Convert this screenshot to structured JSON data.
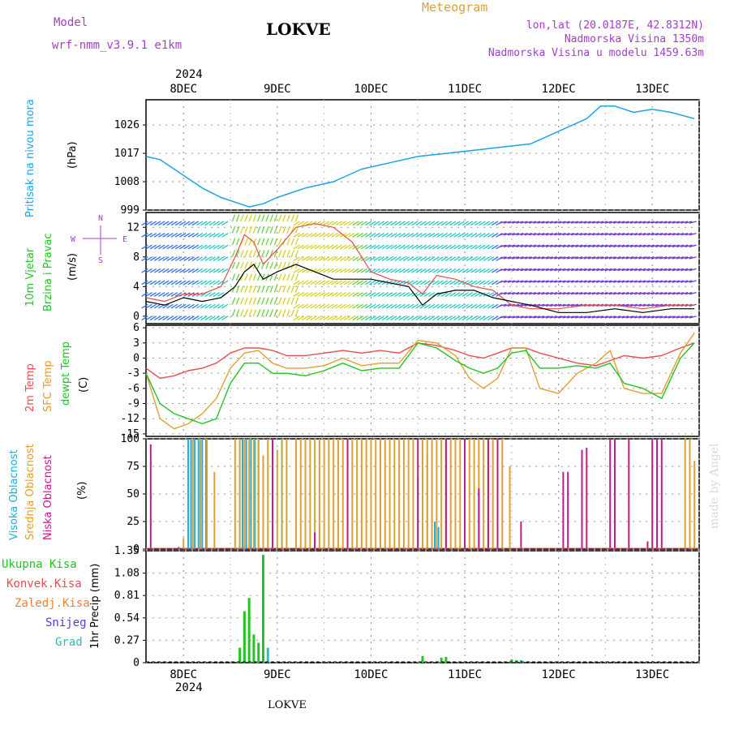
{
  "header": {
    "model_label": "Model",
    "model_name": "wrf-nmm_v3.9.1 e1km",
    "title": "LOKVE",
    "meteogram": "Meteogram",
    "lonlat": "lon,lat (20.0187E, 42.8312N)",
    "altitude": "Nadmorska Visina 1350m",
    "model_altitude": "Nadmorska Visina u modelu 1459.63m",
    "year_top": "2024",
    "year_bottom": "2024",
    "footer": "LOKVE",
    "watermark": "made by Angel"
  },
  "colors": {
    "pressure": "#1aa3e8",
    "temp2m": "#e84c4c",
    "sfc": "#e0a030",
    "dewpt": "#22c422",
    "high_cloud": "#1ab0e0",
    "mid_cloud": "#e0a030",
    "low_cloud": "#c21a8a",
    "total_precip": "#22c422",
    "conv_precip": "#e84c4c",
    "freezing_precip": "#f08030",
    "snow": "#4444dd",
    "hail": "#22c4b4"
  },
  "chart_data": [
    {
      "type": "line",
      "panel": "pressure",
      "ylabel_1": "Pritisak na nivou mora",
      "ylabel_2": "(hPa)",
      "yticks": [
        999,
        1008,
        1017,
        1026
      ],
      "ylim": [
        999,
        1034
      ],
      "x_days": [
        "8DEC",
        "9DEC",
        "10DEC",
        "11DEC",
        "12DEC",
        "13DEC"
      ],
      "x": [
        7.6,
        7.75,
        7.95,
        8.2,
        8.4,
        8.6,
        8.7,
        8.85,
        9.0,
        9.3,
        9.6,
        9.9,
        10.2,
        10.5,
        10.8,
        11.1,
        11.4,
        11.7,
        12.0,
        12.3,
        12.45,
        12.6,
        12.8,
        13.0,
        13.2,
        13.45
      ],
      "values": [
        1016,
        1015,
        1011,
        1006,
        1003,
        1001,
        1000,
        1001,
        1003,
        1006,
        1008,
        1012,
        1014,
        1016,
        1017,
        1018,
        1019,
        1020,
        1024,
        1028,
        1032,
        1032,
        1030,
        1031,
        1030,
        1028
      ]
    },
    {
      "type": "line",
      "panel": "wind",
      "ylabel_1": "10m Vjetar",
      "ylabel_2": "Brzina i Pravac",
      "ylabel_3": "(m/s)",
      "compass": [
        "N",
        "W",
        "E",
        "S"
      ],
      "yticks": [
        0,
        4,
        8,
        12
      ],
      "ylim": [
        -1,
        14
      ],
      "series": [
        {
          "x": [
            7.6,
            7.8,
            8.0,
            8.2,
            8.4,
            8.55,
            8.65,
            8.75,
            8.85,
            9.0,
            9.2,
            9.4,
            9.6,
            9.8,
            10.0,
            10.2,
            10.4,
            10.55,
            10.7,
            10.9,
            11.1,
            11.3,
            11.5,
            11.7,
            12.0,
            12.3,
            12.6,
            12.9,
            13.2,
            13.45
          ],
          "values": [
            2,
            1.5,
            2.5,
            2,
            2.5,
            4,
            6,
            7,
            5,
            6,
            7,
            6,
            5,
            5,
            5,
            4.5,
            4,
            1.5,
            3,
            3.5,
            3.5,
            2.5,
            2,
            1.5,
            0.5,
            0.5,
            1,
            0.5,
            1,
            1
          ]
        },
        {
          "x": [
            7.6,
            7.8,
            8.0,
            8.2,
            8.4,
            8.55,
            8.65,
            8.75,
            8.85,
            9.0,
            9.2,
            9.4,
            9.6,
            9.8,
            10.0,
            10.2,
            10.4,
            10.55,
            10.7,
            10.9,
            11.1,
            11.3,
            11.5,
            11.7,
            12.0,
            12.3,
            12.6,
            12.9,
            13.2,
            13.45
          ],
          "values": [
            2.5,
            2,
            3,
            3,
            4,
            8,
            11,
            10,
            7,
            9,
            12,
            12.5,
            12,
            10,
            6,
            5,
            4.5,
            3,
            5.5,
            5,
            4,
            3.5,
            1.5,
            1,
            1,
            1.5,
            1.5,
            1,
            1.5,
            1.5
          ]
        }
      ]
    },
    {
      "type": "line",
      "panel": "temperature",
      "ylabel_1": "2m Temp",
      "ylabel_2": "SFC Temp",
      "ylabel_3": "dewpt Temp",
      "ylabel_4": "(C)",
      "yticks": [
        -15,
        -12,
        -9,
        -6,
        -3,
        0,
        3,
        6
      ],
      "ylim": [
        -15.5,
        6.5
      ],
      "x": [
        7.6,
        7.75,
        7.9,
        8.05,
        8.2,
        8.35,
        8.5,
        8.65,
        8.8,
        8.95,
        9.1,
        9.3,
        9.5,
        9.7,
        9.9,
        10.1,
        10.3,
        10.5,
        10.7,
        10.9,
        11.05,
        11.2,
        11.35,
        11.5,
        11.65,
        11.8,
        12.0,
        12.2,
        12.4,
        12.55,
        12.7,
        12.9,
        13.1,
        13.3,
        13.45
      ],
      "series": [
        {
          "name": "2m Temp",
          "values": [
            -2,
            -4,
            -3.5,
            -2.5,
            -2,
            -1,
            1,
            2,
            2,
            1.5,
            0.5,
            0.5,
            1,
            1.5,
            1,
            1.5,
            1,
            3,
            2.5,
            1.5,
            0.5,
            0,
            1,
            2,
            2,
            1,
            0,
            -1,
            -1.5,
            -0.5,
            0.5,
            0,
            0.5,
            2,
            3
          ]
        },
        {
          "name": "SFC Temp",
          "values": [
            -3,
            -12,
            -14,
            -13,
            -11,
            -8,
            -2,
            1,
            1.5,
            -1,
            -2,
            -2,
            -1.5,
            0,
            -1.5,
            -1,
            -1,
            3.5,
            3,
            0.5,
            -4,
            -6,
            -4,
            2,
            2,
            -6,
            -7,
            -3,
            -1,
            1.5,
            -6,
            -7,
            -7,
            1,
            5
          ]
        },
        {
          "name": "dewpt Temp",
          "values": [
            -3,
            -9,
            -11,
            -12,
            -13,
            -12,
            -5,
            -1,
            -1,
            -3,
            -3,
            -3.5,
            -2.5,
            -1,
            -2.5,
            -2,
            -2,
            3,
            2,
            -0.5,
            -2,
            -3,
            -2,
            1,
            1.5,
            -2,
            -2,
            -1.5,
            -2,
            -1,
            -5,
            -6,
            -8,
            0,
            3
          ]
        }
      ]
    },
    {
      "type": "bar",
      "panel": "cloud",
      "ylabel_1": "Visoka Oblacnost",
      "ylabel_2": "Srednja Oblacnost",
      "ylabel_3": "Niska Oblacnost",
      "ylabel_4": "(%)",
      "yticks": [
        0,
        25,
        50,
        75,
        100
      ],
      "ylim": [
        0,
        100
      ],
      "series": [
        {
          "name": "Visoka Oblacnost",
          "x": [
            8.05,
            8.08,
            8.12,
            8.16,
            8.2,
            8.24,
            8.6,
            8.63,
            8.67,
            8.72,
            8.76,
            8.8,
            9.05,
            10.5,
            10.6,
            10.68,
            10.72
          ],
          "values": [
            100,
            100,
            100,
            100,
            100,
            100,
            100,
            100,
            100,
            100,
            100,
            100,
            100,
            65,
            85,
            25,
            20
          ]
        },
        {
          "name": "Srednja Oblacnost",
          "x": [
            8.0,
            8.1,
            8.18,
            8.25,
            8.33,
            8.55,
            8.6,
            8.65,
            8.7,
            8.75,
            8.8,
            8.85,
            8.9,
            9.0,
            9.05,
            9.1,
            9.2,
            9.25,
            9.3,
            9.35,
            9.4,
            9.45,
            9.5,
            9.55,
            9.6,
            9.65,
            9.7,
            9.75,
            9.8,
            9.85,
            9.9,
            9.95,
            10.0,
            10.05,
            10.1,
            10.15,
            10.2,
            10.25,
            10.3,
            10.35,
            10.4,
            10.45,
            10.55,
            10.6,
            10.65,
            10.7,
            10.75,
            10.8,
            10.85,
            10.9,
            10.95,
            11.0,
            11.05,
            11.1,
            11.15,
            11.2,
            11.25,
            11.3,
            11.35,
            11.4,
            11.48,
            13.35,
            13.4,
            13.45
          ],
          "values": [
            10,
            100,
            100,
            100,
            70,
            100,
            100,
            100,
            100,
            100,
            100,
            85,
            100,
            90,
            100,
            100,
            100,
            100,
            100,
            100,
            100,
            100,
            100,
            100,
            100,
            100,
            100,
            100,
            100,
            100,
            100,
            100,
            100,
            100,
            100,
            100,
            100,
            100,
            100,
            100,
            100,
            100,
            100,
            100,
            100,
            100,
            100,
            100,
            100,
            100,
            100,
            100,
            100,
            100,
            100,
            100,
            100,
            100,
            100,
            100,
            75,
            100,
            100,
            80
          ]
        },
        {
          "name": "Niska Oblacnost",
          "x": [
            7.65,
            7.95,
            8.95,
            9.4,
            9.75,
            10.5,
            10.8,
            11.0,
            11.15,
            11.25,
            11.35,
            11.6,
            12.05,
            12.1,
            12.25,
            12.3,
            12.55,
            12.6,
            12.75,
            12.95,
            13.0,
            13.05,
            13.1
          ],
          "values": [
            95,
            2,
            100,
            15,
            100,
            100,
            100,
            100,
            55,
            100,
            100,
            25,
            70,
            70,
            90,
            92,
            100,
            100,
            100,
            7,
            100,
            100,
            100
          ]
        }
      ]
    },
    {
      "type": "bar",
      "panel": "precipitation",
      "ylabel_1": "1hr Precip (mm)",
      "legend": [
        "Ukupna Kisa",
        "Konvek.Kisa",
        "Zaledj.Kisa",
        "Snijeg",
        "Grad"
      ],
      "yticks": [
        0,
        0.27,
        0.54,
        0.81,
        1.08,
        1.35
      ],
      "yticklabels": [
        "0",
        "0.27",
        "0.54",
        "0.81",
        "1.08",
        "1.35"
      ],
      "ylim": [
        0,
        1.35
      ],
      "x": [
        8.6,
        8.65,
        8.7,
        8.75,
        8.8,
        8.85,
        8.9,
        10.55,
        10.75,
        10.8,
        11.5,
        11.55,
        11.6
      ],
      "values": [
        0.18,
        0.62,
        0.78,
        0.34,
        0.24,
        1.3,
        0.18,
        0.08,
        0.06,
        0.07,
        0.04,
        0.03,
        0.03
      ]
    }
  ]
}
